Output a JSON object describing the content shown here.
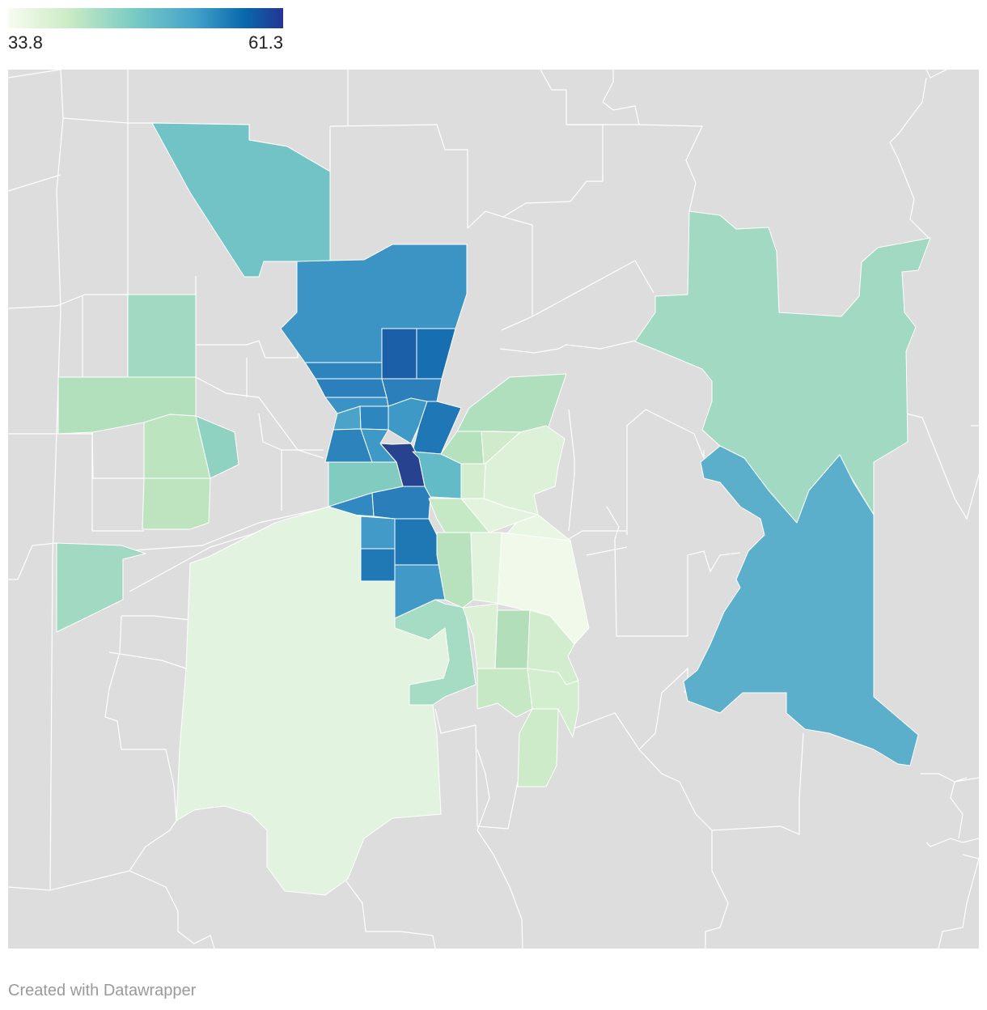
{
  "legend": {
    "min_label": "33.8",
    "max_label": "61.3",
    "min": 33.8,
    "max": 61.3,
    "colors": [
      "#f7fcf0",
      "#ccebc5",
      "#7bccc4",
      "#43a2ca",
      "#0868ac",
      "#253494"
    ]
  },
  "map": {
    "background_color": "#dddddd",
    "border_color": "#ffffff"
  },
  "footer": {
    "credit": "Created with Datawrapper"
  }
}
